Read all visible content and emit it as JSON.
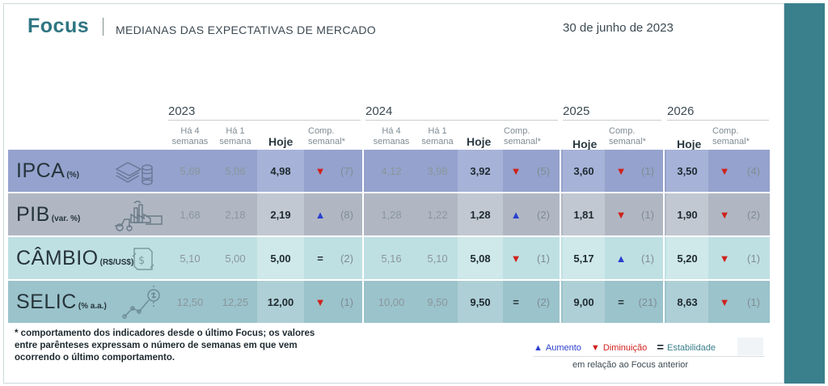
{
  "header": {
    "brand": "Focus",
    "subtitle": "MEDIANAS DAS EXPECTATIVAS DE MERCADO",
    "date": "30 de junho de 2023"
  },
  "years": [
    "2023",
    "2024",
    "2025",
    "2026"
  ],
  "columns": {
    "weeks4": "Há 4\nsemanas",
    "weeks1": "Há 1\nsemana",
    "today": "Hoje",
    "comp": "Comp.\nsemanal*"
  },
  "indicators": [
    {
      "name": "IPCA",
      "unit": "(%)",
      "icon": "coins-icon",
      "y2023": {
        "w4": "5,69",
        "w1": "5,06",
        "today": "4,98",
        "dir": "down",
        "count": "(7)"
      },
      "y2024": {
        "w4": "4,12",
        "w1": "3,98",
        "today": "3,92",
        "dir": "down",
        "count": "(5)"
      },
      "y2025": {
        "today": "3,60",
        "dir": "down",
        "count": "(1)"
      },
      "y2026": {
        "today": "3,50",
        "dir": "down",
        "count": "(4)"
      }
    },
    {
      "name": "PIB",
      "unit": "(var. %)",
      "icon": "factory-icon",
      "y2023": {
        "w4": "1,68",
        "w1": "2,18",
        "today": "2,19",
        "dir": "up",
        "count": "(8)"
      },
      "y2024": {
        "w4": "1,28",
        "w1": "1,22",
        "today": "1,28",
        "dir": "up",
        "count": "(2)"
      },
      "y2025": {
        "today": "1,81",
        "dir": "down",
        "count": "(1)"
      },
      "y2026": {
        "today": "1,90",
        "dir": "down",
        "count": "(2)"
      }
    },
    {
      "name": "CÂMBIO",
      "unit": "(R$/US$)",
      "icon": "exchange-icon",
      "y2023": {
        "w4": "5,10",
        "w1": "5,00",
        "today": "5,00",
        "dir": "eq",
        "count": "(2)"
      },
      "y2024": {
        "w4": "5,16",
        "w1": "5,10",
        "today": "5,08",
        "dir": "down",
        "count": "(1)"
      },
      "y2025": {
        "today": "5,17",
        "dir": "up",
        "count": "(1)"
      },
      "y2026": {
        "today": "5,20",
        "dir": "down",
        "count": "(1)"
      }
    },
    {
      "name": "SELIC",
      "unit": "(% a.a.)",
      "icon": "trend-chart-icon",
      "y2023": {
        "w4": "12,50",
        "w1": "12,25",
        "today": "12,00",
        "dir": "down",
        "count": "(1)"
      },
      "y2024": {
        "w4": "10,00",
        "w1": "9,50",
        "today": "9,50",
        "dir": "eq",
        "count": "(2)"
      },
      "y2025": {
        "today": "9,00",
        "dir": "eq",
        "count": "(21)"
      },
      "y2026": {
        "today": "8,63",
        "dir": "down",
        "count": "(1)"
      }
    }
  ],
  "symbols": {
    "up": "▲",
    "down": "▼",
    "eq": "="
  },
  "footnote": "* comportamento dos indicadores desde o último Focus; os valores entre parênteses expressam o número de semanas em que vem ocorrendo o último comportamento.",
  "legend": {
    "up_label": "Aumento",
    "down_label": "Diminuição",
    "eq_label": "Estabilidade",
    "note": "em relação ao Focus anterior"
  },
  "colors": {
    "row_ipca": "#95a2cd",
    "row_pib": "#b0b7c3",
    "row_cambio": "#bfe0e3",
    "row_selic": "#9bc3cb",
    "accent": "#3a7f8c",
    "up": "#2b3fcf",
    "down": "#d0211c"
  }
}
